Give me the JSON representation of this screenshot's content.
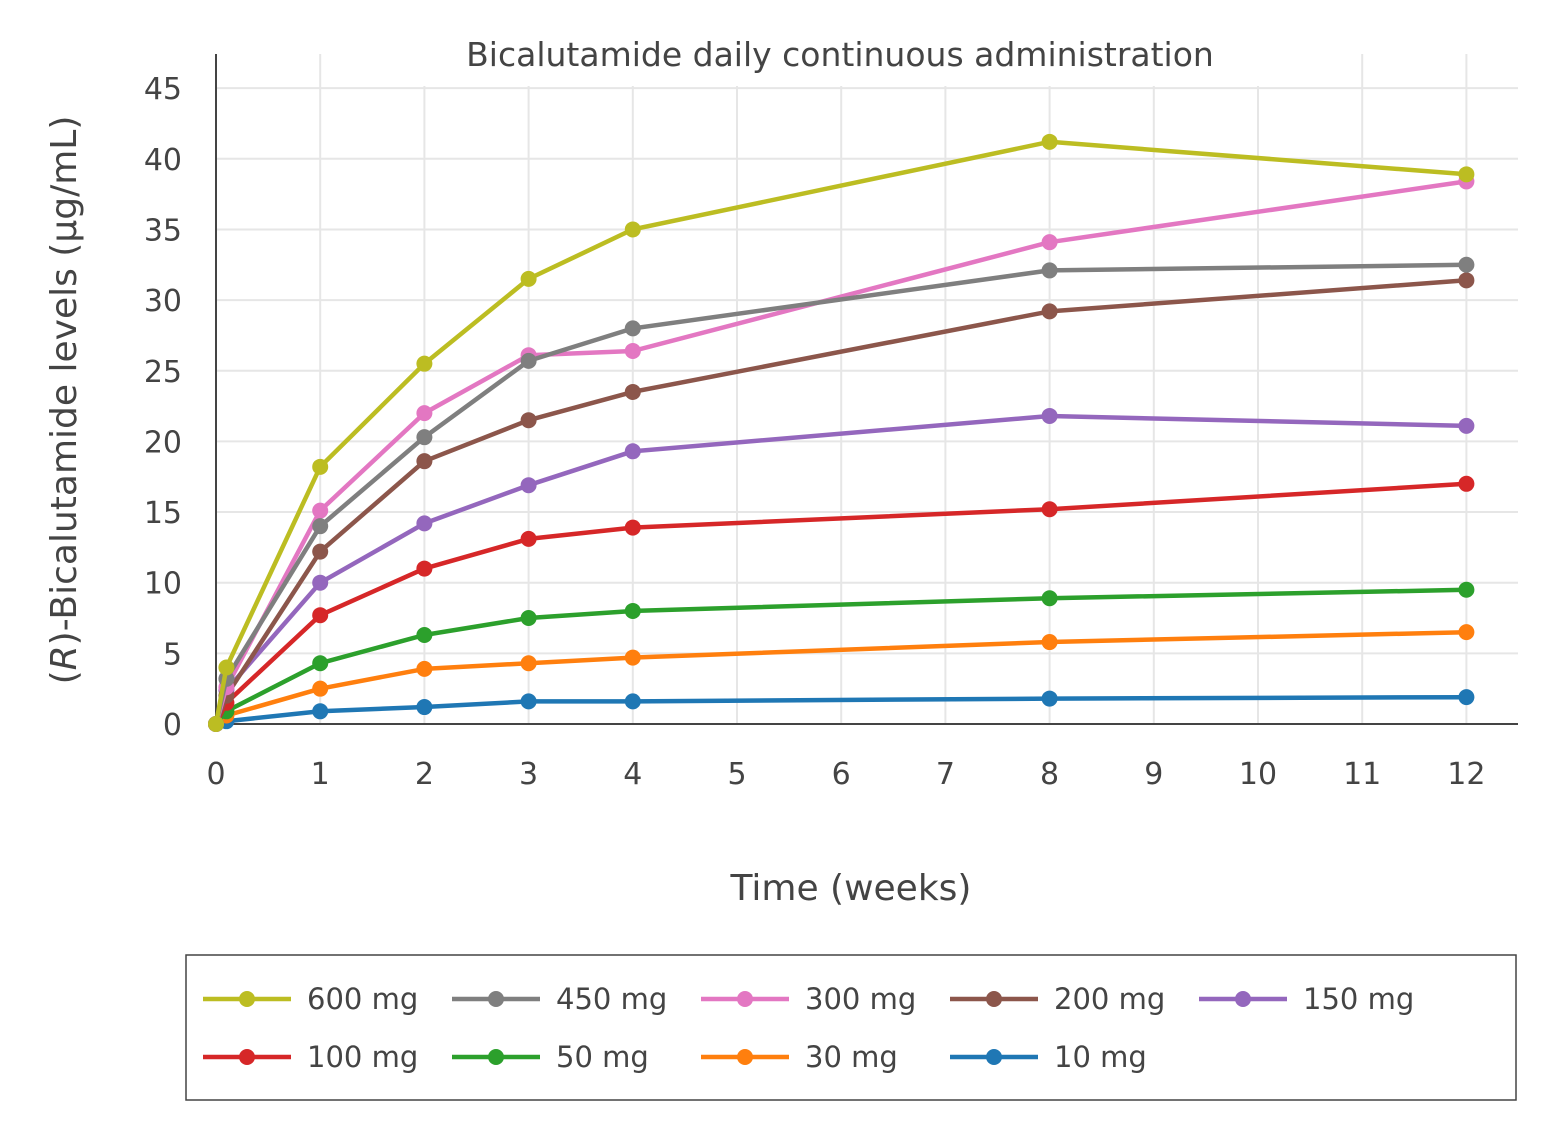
{
  "chart_data": {
    "type": "line",
    "title": "Bicalutamide daily continuous administration",
    "xlabel": "Time (weeks)",
    "ylabel": "(R)-Bicalutamide levels (µg/mL)",
    "ylabel_italic_part": "R",
    "xlim": [
      0,
      12.5
    ],
    "ylim": [
      0,
      45
    ],
    "xticks": [
      0,
      1,
      2,
      3,
      4,
      5,
      6,
      7,
      8,
      9,
      10,
      11,
      12
    ],
    "yticks": [
      0,
      5,
      10,
      15,
      20,
      25,
      30,
      35,
      40,
      45
    ],
    "grid": true,
    "legend_position": "bottom",
    "series": [
      {
        "name": "600 mg",
        "color": "#bcbd22",
        "x": [
          0,
          0.1,
          1,
          2,
          3,
          4,
          8,
          12
        ],
        "y": [
          0,
          4.0,
          18.2,
          25.5,
          31.5,
          35.0,
          41.2,
          38.9
        ]
      },
      {
        "name": "450 mg",
        "color": "#7f7f7f",
        "x": [
          0,
          0.1,
          1,
          2,
          3,
          4,
          8,
          12
        ],
        "y": [
          0,
          3.2,
          14.0,
          20.3,
          25.7,
          28.0,
          32.1,
          32.5
        ]
      },
      {
        "name": "300 mg",
        "color": "#e377c2",
        "x": [
          0,
          0.1,
          1,
          2,
          3,
          4,
          8,
          12
        ],
        "y": [
          0,
          2.6,
          15.1,
          22.0,
          26.1,
          26.4,
          34.1,
          38.4
        ]
      },
      {
        "name": "200 mg",
        "color": "#8c564b",
        "x": [
          0,
          0.1,
          1,
          2,
          3,
          4,
          8,
          12
        ],
        "y": [
          0,
          2.0,
          12.2,
          18.6,
          21.5,
          23.5,
          29.2,
          31.4
        ]
      },
      {
        "name": "150 mg",
        "color": "#9467bd",
        "x": [
          0,
          0.1,
          1,
          2,
          3,
          4,
          8,
          12
        ],
        "y": [
          0,
          2.4,
          10.0,
          14.2,
          16.9,
          19.3,
          21.8,
          21.1
        ]
      },
      {
        "name": "100 mg",
        "color": "#d62728",
        "x": [
          0,
          0.1,
          1,
          2,
          3,
          4,
          8,
          12
        ],
        "y": [
          0,
          1.5,
          7.7,
          11.0,
          13.1,
          13.9,
          15.2,
          17.0
        ]
      },
      {
        "name": "50 mg",
        "color": "#2ca02c",
        "x": [
          0,
          0.1,
          1,
          2,
          3,
          4,
          8,
          12
        ],
        "y": [
          0,
          0.9,
          4.3,
          6.3,
          7.5,
          8.0,
          8.9,
          9.5
        ]
      },
      {
        "name": "30 mg",
        "color": "#ff7f0e",
        "x": [
          0,
          0.1,
          1,
          2,
          3,
          4,
          8,
          12
        ],
        "y": [
          0,
          0.6,
          2.5,
          3.9,
          4.3,
          4.7,
          5.8,
          6.5
        ]
      },
      {
        "name": "10 mg",
        "color": "#1f77b4",
        "x": [
          0,
          0.1,
          1,
          2,
          3,
          4,
          8,
          12
        ],
        "y": [
          0,
          0.2,
          0.9,
          1.2,
          1.6,
          1.6,
          1.8,
          1.9
        ]
      }
    ]
  }
}
